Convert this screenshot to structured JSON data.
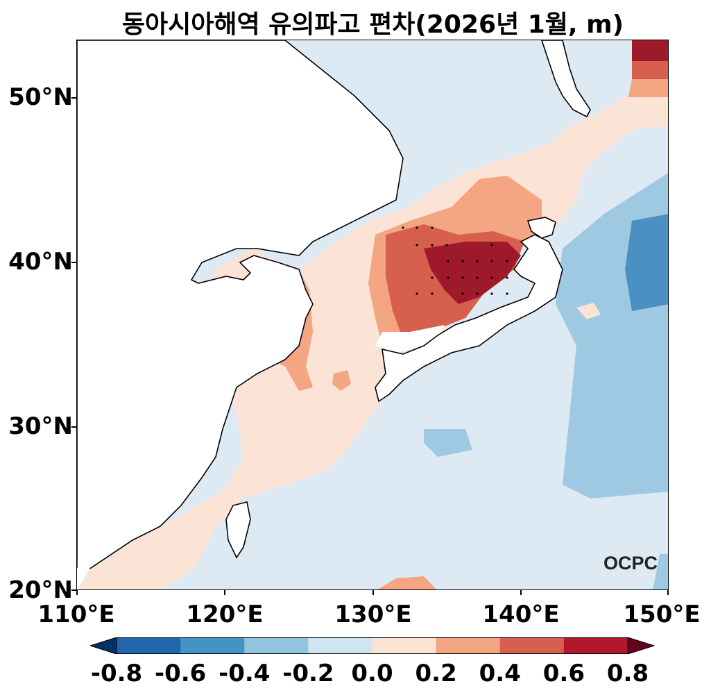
{
  "title": "동아시아해역 유의파고 편차(2026년 1월, m)",
  "lat_labels": [
    "50°N",
    "40°N",
    "30°N",
    "20°N"
  ],
  "lon_labels": [
    "110°E",
    "120°E",
    "130°E",
    "140°E",
    "150°E"
  ],
  "colorbar": {
    "labels": [
      "-0.8",
      "-0.6",
      "-0.4",
      "-0.2",
      "0.0",
      "0.2",
      "0.4",
      "0.6",
      "0.8"
    ],
    "colors": [
      "#2166ac",
      "#4393c3",
      "#92c5de",
      "#d1e5f0",
      "#fbe3d6",
      "#f4a582",
      "#d6604d",
      "#b2182b"
    ],
    "extend_low_color": "#053061",
    "extend_high_color": "#67001f"
  },
  "logo": "OCPC"
}
